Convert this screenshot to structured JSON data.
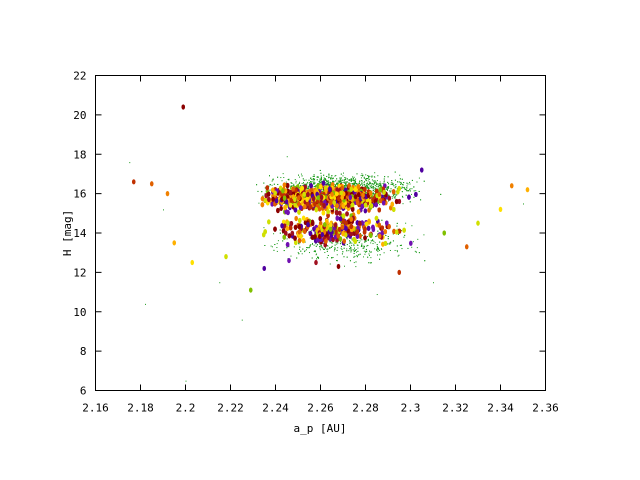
{
  "chart_data": {
    "type": "scatter",
    "title": "",
    "xlabel": "a_p [AU]",
    "ylabel": "H [mag]",
    "xlim": [
      2.16,
      2.36
    ],
    "ylim": [
      6,
      22
    ],
    "xticks": [
      "2.16",
      "2.18",
      "2.2",
      "2.22",
      "2.24",
      "2.26",
      "2.28",
      "2.3",
      "2.32",
      "2.34",
      "2.36"
    ],
    "yticks": [
      "6",
      "8",
      "10",
      "12",
      "14",
      "16",
      "18",
      "20",
      "22"
    ],
    "grid": false,
    "legend": "none",
    "colors": {
      "small_points": "#1a9a1a",
      "palette": [
        "#8b0000",
        "#c03000",
        "#e06000",
        "#f08000",
        "#ffb000",
        "#ffe000",
        "#d0e000",
        "#80c000",
        "#5000a0",
        "#7010b0",
        "#a01020"
      ]
    },
    "series": [
      {
        "values": [
          [
            2.199,
            20.4
          ],
          [
            2.177,
            16.6
          ],
          [
            2.185,
            16.5
          ],
          [
            2.192,
            16.0
          ],
          [
            2.195,
            13.5
          ],
          [
            2.203,
            12.5
          ],
          [
            2.218,
            12.8
          ],
          [
            2.229,
            11.1
          ],
          [
            2.235,
            12.2
          ],
          [
            2.246,
            12.6
          ],
          [
            2.258,
            12.5
          ],
          [
            2.268,
            12.3
          ],
          [
            2.295,
            12.0
          ],
          [
            2.325,
            13.3
          ],
          [
            2.345,
            16.4
          ],
          [
            2.352,
            16.2
          ],
          [
            2.34,
            15.2
          ],
          [
            2.33,
            14.5
          ],
          [
            2.315,
            14.0
          ],
          [
            2.305,
            17.2
          ]
        ]
      },
      {
        "values": [
          [
            2.175,
            17.6
          ],
          [
            2.182,
            10.4
          ],
          [
            2.225,
            9.6
          ],
          [
            2.215,
            11.5
          ],
          [
            2.2,
            6.5
          ],
          [
            2.31,
            11.5
          ],
          [
            2.35,
            15.5
          ],
          [
            2.19,
            15.2
          ],
          [
            2.245,
            17.9
          ],
          [
            2.285,
            10.9
          ]
        ]
      }
    ]
  }
}
